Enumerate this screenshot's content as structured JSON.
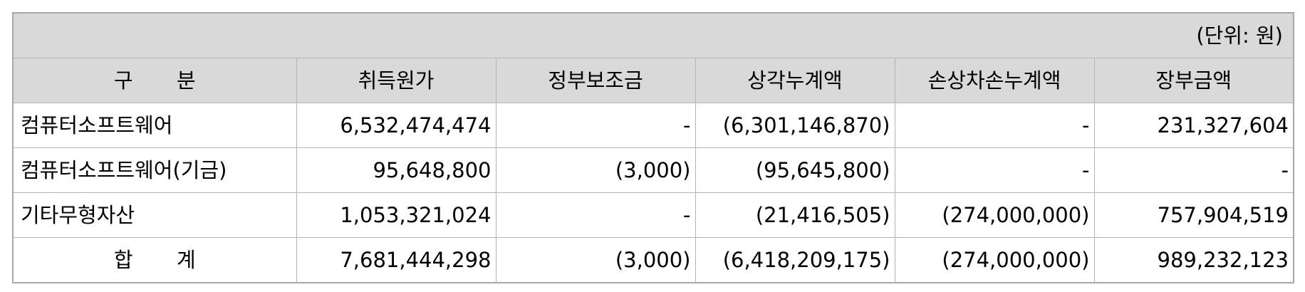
{
  "unit_label": "(단위: 원)",
  "headers": [
    "구 분",
    "취득원가",
    "정부보조금",
    "상각누계액",
    "손상차손누계액",
    "장부금액"
  ],
  "rows": [
    {
      "label": "컴퓨터소프트웨어",
      "cells": [
        "6,532,474,474",
        "-",
        "(6,301,146,870)",
        "-",
        "231,327,604"
      ]
    },
    {
      "label": "컴퓨터소프트웨어(기금)",
      "cells": [
        "95,648,800",
        "(3,000)",
        "(95,645,800)",
        "-",
        "-"
      ]
    },
    {
      "label": "기타무형자산",
      "cells": [
        "1,053,321,024",
        "-",
        "(21,416,505)",
        "(274,000,000)",
        "757,904,519"
      ]
    }
  ],
  "total": {
    "label": "합 계",
    "cells": [
      "7,681,444,298",
      "(3,000)",
      "(6,418,209,175)",
      "(274,000,000)",
      "989,232,123"
    ]
  }
}
